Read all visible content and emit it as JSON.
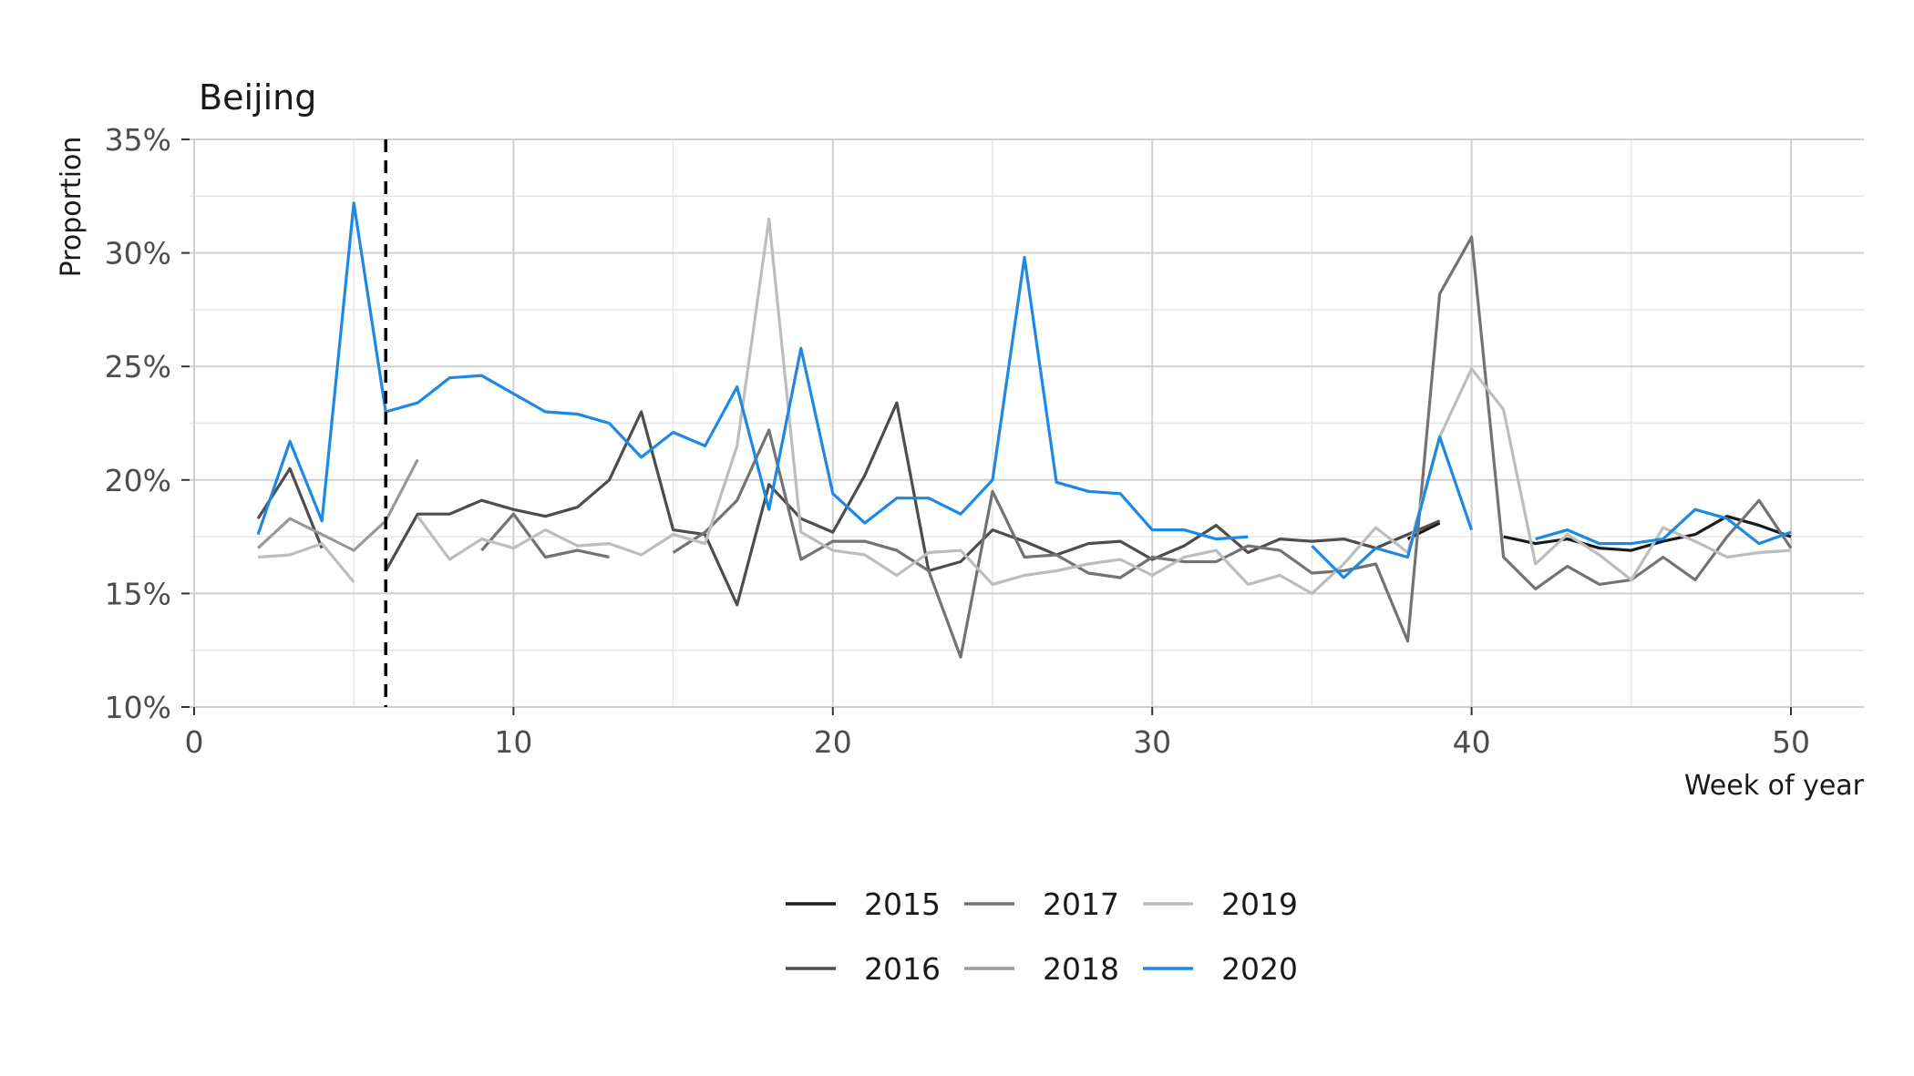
{
  "chart_data": {
    "type": "line",
    "title": "Beijing",
    "xlabel": "Week of year",
    "ylabel": "Proportion",
    "xlim": [
      0,
      52.5
    ],
    "ylim": [
      10,
      35
    ],
    "x_ticks": [
      0,
      10,
      20,
      30,
      40,
      50
    ],
    "x_tick_labels": [
      "0",
      "10",
      "20",
      "30",
      "40",
      "50"
    ],
    "y_ticks": [
      10,
      15,
      20,
      25,
      30,
      35
    ],
    "y_tick_labels": [
      "10%",
      "15%",
      "20%",
      "25%",
      "30%",
      "35%"
    ],
    "grid": true,
    "legend_position": "bottom",
    "vline": {
      "x": 6,
      "style": "dashed",
      "color": "#000000"
    },
    "series": [
      {
        "name": "2015",
        "color": "#1a1a1a",
        "segments": [
          [
            [
              38,
              17.4
            ],
            [
              39,
              18.1
            ]
          ],
          [
            [
              41,
              17.5
            ],
            [
              42,
              17.2
            ],
            [
              43,
              17.4
            ],
            [
              44,
              17.0
            ],
            [
              45,
              16.9
            ],
            [
              46,
              17.3
            ],
            [
              47,
              17.6
            ],
            [
              48,
              18.4
            ],
            [
              49,
              18.0
            ],
            [
              50,
              17.5
            ]
          ]
        ]
      },
      {
        "name": "2016",
        "color": "#4d4d4d",
        "segments": [
          [
            [
              2,
              18.3
            ],
            [
              3,
              20.5
            ],
            [
              4,
              17.0
            ]
          ],
          [
            [
              6,
              16.0
            ],
            [
              7,
              18.5
            ],
            [
              8,
              18.5
            ],
            [
              9,
              19.1
            ],
            [
              10,
              18.7
            ],
            [
              11,
              18.4
            ],
            [
              12,
              18.8
            ],
            [
              13,
              20.0
            ],
            [
              14,
              23.0
            ],
            [
              15,
              17.8
            ],
            [
              16,
              17.6
            ],
            [
              17,
              14.5
            ],
            [
              18,
              19.8
            ],
            [
              19,
              18.3
            ],
            [
              20,
              17.7
            ],
            [
              21,
              20.2
            ],
            [
              22,
              23.4
            ],
            [
              23,
              16.0
            ],
            [
              24,
              16.4
            ],
            [
              25,
              17.8
            ],
            [
              26,
              17.3
            ],
            [
              27,
              16.7
            ],
            [
              28,
              17.2
            ],
            [
              29,
              17.3
            ],
            [
              30,
              16.5
            ],
            [
              31,
              17.1
            ],
            [
              32,
              18.0
            ],
            [
              33,
              16.8
            ],
            [
              34,
              17.4
            ],
            [
              35,
              17.3
            ],
            [
              36,
              17.4
            ],
            [
              37,
              17.0
            ],
            [
              38,
              17.6
            ],
            [
              39,
              18.2
            ]
          ]
        ]
      },
      {
        "name": "2017",
        "color": "#737373",
        "segments": [
          [
            [
              9,
              16.9
            ],
            [
              10,
              18.5
            ],
            [
              11,
              16.6
            ],
            [
              12,
              16.9
            ],
            [
              13,
              16.6
            ]
          ],
          [
            [
              15,
              16.8
            ],
            [
              16,
              17.7
            ],
            [
              17,
              19.1
            ],
            [
              18,
              22.2
            ],
            [
              19,
              16.5
            ],
            [
              20,
              17.3
            ],
            [
              21,
              17.3
            ],
            [
              22,
              16.9
            ],
            [
              23,
              16.0
            ],
            [
              24,
              12.2
            ],
            [
              25,
              19.5
            ],
            [
              26,
              16.6
            ],
            [
              27,
              16.7
            ],
            [
              28,
              15.9
            ],
            [
              29,
              15.7
            ],
            [
              30,
              16.6
            ],
            [
              31,
              16.4
            ],
            [
              32,
              16.4
            ],
            [
              33,
              17.1
            ],
            [
              34,
              16.9
            ],
            [
              35,
              15.9
            ],
            [
              36,
              16.0
            ],
            [
              37,
              16.3
            ],
            [
              38,
              12.9
            ],
            [
              39,
              28.2
            ],
            [
              40,
              30.7
            ],
            [
              41,
              16.6
            ],
            [
              42,
              15.2
            ],
            [
              43,
              16.2
            ],
            [
              44,
              15.4
            ],
            [
              45,
              15.6
            ],
            [
              46,
              16.6
            ],
            [
              47,
              15.6
            ],
            [
              48,
              17.5
            ],
            [
              49,
              19.1
            ],
            [
              50,
              17.0
            ]
          ]
        ]
      },
      {
        "name": "2018",
        "color": "#999999",
        "segments": [
          [
            [
              2,
              17.0
            ],
            [
              3,
              18.3
            ],
            [
              4,
              17.6
            ],
            [
              5,
              16.9
            ],
            [
              6,
              18.2
            ],
            [
              7,
              20.9
            ]
          ]
        ]
      },
      {
        "name": "2019",
        "color": "#bdbdbd",
        "segments": [
          [
            [
              2,
              16.6
            ],
            [
              3,
              16.7
            ],
            [
              4,
              17.2
            ],
            [
              5,
              15.5
            ]
          ],
          [
            [
              7,
              18.4
            ],
            [
              8,
              16.5
            ],
            [
              9,
              17.4
            ],
            [
              10,
              17.0
            ],
            [
              11,
              17.8
            ],
            [
              12,
              17.1
            ],
            [
              13,
              17.2
            ],
            [
              14,
              16.7
            ],
            [
              15,
              17.6
            ],
            [
              16,
              17.2
            ],
            [
              17,
              21.5
            ],
            [
              18,
              31.5
            ],
            [
              19,
              17.7
            ],
            [
              20,
              16.9
            ],
            [
              21,
              16.7
            ],
            [
              22,
              15.8
            ],
            [
              23,
              16.8
            ],
            [
              24,
              16.9
            ],
            [
              25,
              15.4
            ],
            [
              26,
              15.8
            ],
            [
              27,
              16.0
            ],
            [
              28,
              16.3
            ],
            [
              29,
              16.5
            ],
            [
              30,
              15.8
            ],
            [
              31,
              16.6
            ],
            [
              32,
              16.9
            ],
            [
              33,
              15.4
            ],
            [
              34,
              15.8
            ],
            [
              35,
              15.0
            ],
            [
              36,
              16.3
            ],
            [
              37,
              17.9
            ],
            [
              38,
              16.8
            ],
            [
              39,
              21.9
            ],
            [
              40,
              24.9
            ],
            [
              41,
              23.1
            ],
            [
              42,
              16.3
            ],
            [
              43,
              17.6
            ],
            [
              44,
              16.7
            ],
            [
              45,
              15.6
            ],
            [
              46,
              17.9
            ],
            [
              47,
              17.3
            ],
            [
              48,
              16.6
            ],
            [
              49,
              16.8
            ],
            [
              50,
              16.9
            ]
          ]
        ]
      },
      {
        "name": "2020",
        "color": "#1e88e5",
        "segments": [
          [
            [
              2,
              17.6
            ],
            [
              3,
              21.7
            ],
            [
              4,
              18.2
            ],
            [
              5,
              32.2
            ],
            [
              6,
              23.0
            ],
            [
              7,
              23.4
            ],
            [
              8,
              24.5
            ],
            [
              9,
              24.6
            ],
            [
              10,
              23.8
            ],
            [
              11,
              23.0
            ],
            [
              12,
              22.9
            ],
            [
              13,
              22.5
            ],
            [
              14,
              21.0
            ],
            [
              15,
              22.1
            ],
            [
              16,
              21.5
            ],
            [
              17,
              24.1
            ],
            [
              18,
              18.7
            ],
            [
              19,
              25.8
            ],
            [
              20,
              19.4
            ],
            [
              21,
              18.1
            ],
            [
              22,
              19.2
            ],
            [
              23,
              19.2
            ],
            [
              24,
              18.5
            ],
            [
              25,
              20.0
            ],
            [
              26,
              29.8
            ],
            [
              27,
              19.9
            ],
            [
              28,
              19.5
            ],
            [
              29,
              19.4
            ],
            [
              30,
              17.8
            ],
            [
              31,
              17.8
            ],
            [
              32,
              17.4
            ],
            [
              33,
              17.5
            ]
          ],
          [
            [
              35,
              17.1
            ],
            [
              36,
              15.7
            ],
            [
              37,
              17.0
            ],
            [
              38,
              16.6
            ],
            [
              39,
              21.9
            ],
            [
              40,
              17.8
            ]
          ],
          [
            [
              42,
              17.4
            ],
            [
              43,
              17.8
            ],
            [
              44,
              17.2
            ],
            [
              45,
              17.2
            ],
            [
              46,
              17.4
            ],
            [
              47,
              18.7
            ],
            [
              48,
              18.3
            ],
            [
              49,
              17.2
            ],
            [
              50,
              17.7
            ]
          ]
        ]
      }
    ]
  }
}
